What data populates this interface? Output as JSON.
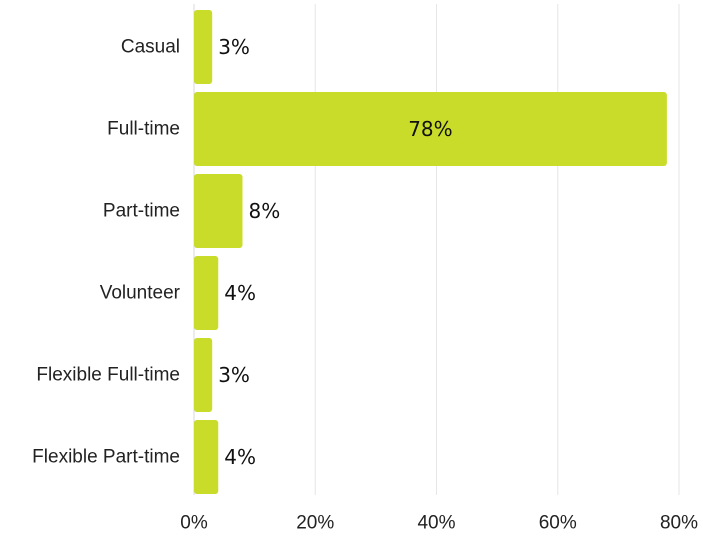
{
  "chart_data": {
    "type": "bar",
    "orientation": "horizontal",
    "title": "",
    "xlabel": "",
    "ylabel": "",
    "categories": [
      "Casual",
      "Full-time",
      "Part-time",
      "Volunteer",
      "Flexible Full-time",
      "Flexible Part-time"
    ],
    "values": [
      3,
      78,
      8,
      4,
      3,
      4
    ],
    "value_labels": [
      "3%",
      "78%",
      "8%",
      "4%",
      "3%",
      "4%"
    ],
    "xlim": [
      0,
      80
    ],
    "xticks": [
      0,
      20,
      40,
      60,
      80
    ],
    "xtick_labels": [
      "0%",
      "20%",
      "40%",
      "60%",
      "80%"
    ],
    "grid": "vertical",
    "bar_color": "#c9dc2a",
    "legend": "none"
  }
}
